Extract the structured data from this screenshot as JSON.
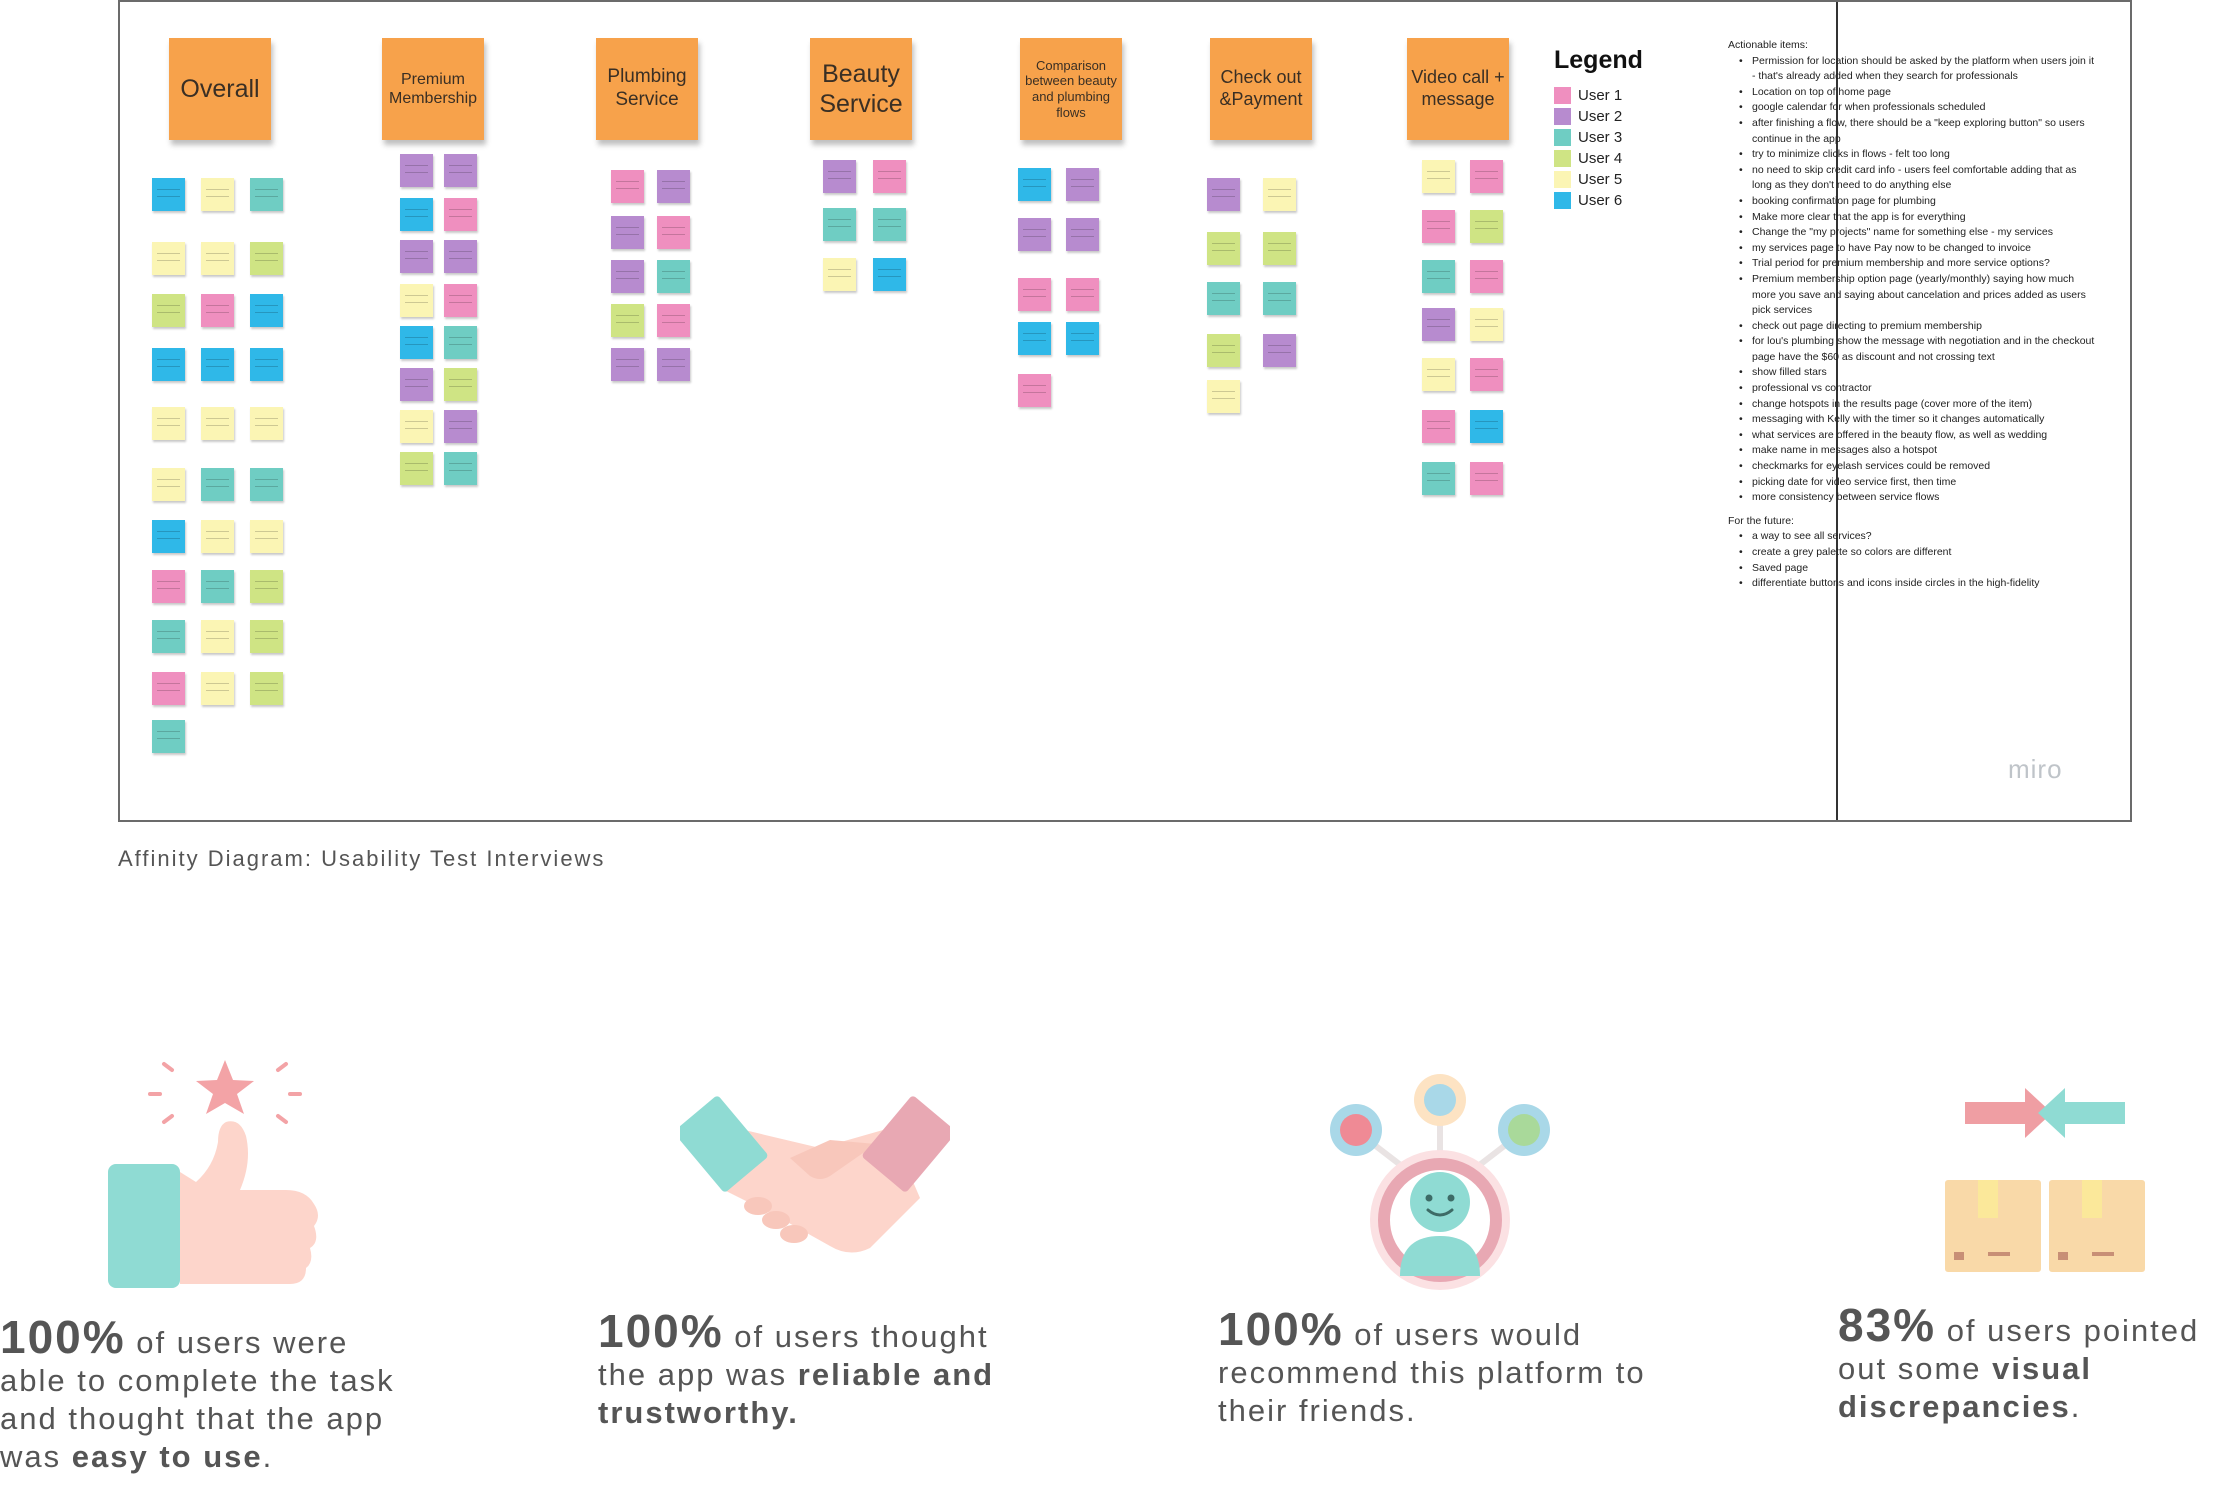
{
  "board": {
    "headers": [
      "Overall",
      "Premium Membership",
      "Plumbing Service",
      "Beauty Service",
      "Comparison between beauty and plumbing flows",
      "Check out &Payment",
      "Video call + message"
    ],
    "legend": {
      "title": "Legend",
      "items": [
        {
          "label": "User 1",
          "color": "#ef8fbf"
        },
        {
          "label": "User 2",
          "color": "#b78bcf"
        },
        {
          "label": "User 3",
          "color": "#6fcdc3"
        },
        {
          "label": "User 4",
          "color": "#cfe484"
        },
        {
          "label": "User 5",
          "color": "#fbf5b4"
        },
        {
          "label": "User 6",
          "color": "#2fb8e8"
        }
      ]
    },
    "actionable_heading": "Actionable items:",
    "actionable_items": [
      "Permission for location should be asked by the platform when users join it - that's already added when they search for professionals",
      "Location on top of home page",
      "google calendar for when professionals scheduled",
      "after finishing a flow, there should be a \"keep exploring button\" so users continue in the app",
      "try to minimize clicks in flows - felt too long",
      "no need to skip credit card info - users feel comfortable adding that as long as they don't need to do anything else",
      "booking confirmation page for plumbing",
      "Make more clear that the app is for everything",
      "Change the \"my projects\" name for something else - my services",
      "my services page to have Pay now to be changed to invoice",
      "Trial period for premium membership and more service options?",
      "Premium membership option page (yearly/monthly) saying how much more you save and saying about cancelation and prices added as users pick services",
      "check out page directing to premium membership",
      "for lou's plumbing show the message with negotiation and in the checkout page have the $60 as discount and not crossing text",
      "show filled stars",
      "professional vs contractor",
      "change hotspots in the results page (cover more of the item)",
      "messaging with Kelly with the timer so it changes automatically",
      "what services are offered in the beauty flow, as well as wedding",
      "make name in messages also a hotspot",
      "checkmarks for eyelash services could be removed",
      "picking date for video service first, then time",
      "more consistency between service flows"
    ],
    "future_heading": "For the future:",
    "future_items": [
      " a way to see all services?",
      "create a grey palette so colors are different",
      "Saved page",
      "differentiate buttons and icons inside circles in the high-fidelity"
    ],
    "logo": "miro"
  },
  "caption": "Affinity Diagram: Usability Test Interviews",
  "icons": [
    "thumbs-up-icon",
    "handshake-icon",
    "user-network-icon",
    "box-comparison-icon"
  ],
  "stats": [
    {
      "value": "100%",
      "t1": " of users were able to complete the task and thought that the app was ",
      "bold": "easy to use",
      "t2": "."
    },
    {
      "value": "100%",
      "t1": " of users thought the app was ",
      "bold": "reliable and trustworthy.",
      "t2": ""
    },
    {
      "value": "100%",
      "t1": " of users would recommend this platform to their friends.",
      "bold": "",
      "t2": ""
    },
    {
      "value": "83%",
      "t1": " of users pointed out some ",
      "bold": "visual discrepancies",
      "t2": "."
    }
  ]
}
